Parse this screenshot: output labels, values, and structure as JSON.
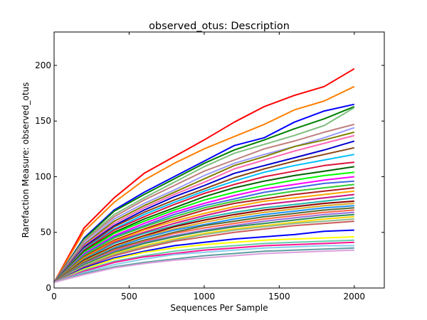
{
  "chart_data": {
    "type": "line",
    "title": "observed_otus: Description",
    "xlabel": "Sequences Per Sample",
    "ylabel": "Rarefaction Measure: observed_otus",
    "xlim": [
      0,
      2200
    ],
    "ylim": [
      0,
      230
    ],
    "x_ticks": [
      0,
      500,
      1000,
      1500,
      2000
    ],
    "y_ticks": [
      0,
      50,
      100,
      150,
      200
    ],
    "grid": false,
    "legend": "none",
    "x": [
      0,
      200,
      400,
      600,
      800,
      1000,
      1200,
      1400,
      1600,
      1800,
      2000
    ],
    "series": [
      {
        "color": "#ff0000",
        "values": [
          5,
          54,
          81,
          103,
          118,
          133,
          149,
          163,
          173,
          181,
          197
        ]
      },
      {
        "color": "#ff7f00",
        "values": [
          5,
          51,
          77,
          97,
          112,
          125,
          136,
          147,
          160,
          168,
          181
        ]
      },
      {
        "color": "#0000ff",
        "values": [
          5,
          45,
          70,
          86,
          100,
          114,
          128,
          135,
          149,
          159,
          165
        ]
      },
      {
        "color": "#008000",
        "values": [
          5,
          44,
          69,
          84,
          98,
          112,
          124,
          133,
          143,
          152,
          163
        ]
      },
      {
        "color": "#7fbf7f",
        "values": [
          5,
          43,
          66,
          81,
          95,
          109,
          121,
          129,
          137,
          146,
          162
        ]
      },
      {
        "color": "#bf7f7f",
        "values": [
          5,
          42,
          64,
          79,
          92,
          105,
          115,
          125,
          132,
          140,
          147
        ]
      },
      {
        "color": "#9999ff",
        "values": [
          5,
          40,
          62,
          76,
          88,
          101,
          112,
          120,
          127,
          135,
          144
        ]
      },
      {
        "color": "#808000",
        "values": [
          5,
          39,
          60,
          74,
          86,
          98,
          110,
          118,
          127,
          133,
          140
        ]
      },
      {
        "color": "#ff69b4",
        "values": [
          5,
          38,
          58,
          72,
          84,
          95,
          107,
          115,
          123,
          130,
          137
        ]
      },
      {
        "color": "#0000cd",
        "values": [
          5,
          37,
          56,
          70,
          82,
          92,
          103,
          110,
          117,
          124,
          132
        ]
      },
      {
        "color": "#8b4513",
        "values": [
          5,
          36,
          55,
          68,
          79,
          89,
          99,
          107,
          114,
          120,
          126
        ]
      },
      {
        "color": "#00bfff",
        "values": [
          5,
          35,
          53,
          66,
          77,
          87,
          96,
          104,
          110,
          115,
          120
        ]
      },
      {
        "color": "#dc143c",
        "values": [
          5,
          34,
          52,
          64,
          75,
          85,
          93,
          100,
          105,
          110,
          113
        ]
      },
      {
        "color": "#006400",
        "values": [
          5,
          33,
          50,
          62,
          72,
          82,
          90,
          96,
          101,
          105,
          109
        ]
      },
      {
        "color": "#00ff00",
        "values": [
          5,
          32,
          49,
          60,
          70,
          79,
          86,
          92,
          97,
          101,
          104
        ]
      },
      {
        "color": "#ff00ff",
        "values": [
          5,
          31,
          47,
          58,
          68,
          76,
          83,
          89,
          93,
          97,
          100
        ]
      },
      {
        "color": "#4169e1",
        "values": [
          5,
          30,
          46,
          56,
          66,
          74,
          80,
          86,
          90,
          94,
          96
        ]
      },
      {
        "color": "#32cd32",
        "values": [
          5,
          29,
          45,
          55,
          64,
          72,
          78,
          83,
          87,
          90,
          93
        ]
      },
      {
        "color": "#b22222",
        "values": [
          5,
          28,
          43,
          53,
          62,
          70,
          76,
          80,
          84,
          87,
          90
        ]
      },
      {
        "color": "#ffa500",
        "values": [
          5,
          27,
          42,
          52,
          60,
          67,
          73,
          78,
          81,
          84,
          87
        ]
      },
      {
        "color": "#c71585",
        "values": [
          5,
          26,
          41,
          50,
          58,
          65,
          71,
          75,
          78,
          81,
          84
        ]
      },
      {
        "color": "#20b2aa",
        "values": [
          5,
          26,
          40,
          49,
          56,
          63,
          68,
          72,
          75,
          78,
          81
        ]
      },
      {
        "color": "#8b0000",
        "values": [
          5,
          25,
          38,
          47,
          55,
          61,
          66,
          70,
          73,
          76,
          78
        ]
      },
      {
        "color": "#daa520",
        "values": [
          5,
          24,
          37,
          46,
          53,
          59,
          64,
          68,
          71,
          74,
          76
        ]
      },
      {
        "color": "#1e90ff",
        "values": [
          5,
          23,
          36,
          45,
          52,
          57,
          62,
          66,
          69,
          72,
          74
        ]
      },
      {
        "color": "#556b2f",
        "values": [
          5,
          23,
          35,
          43,
          50,
          56,
          60,
          64,
          67,
          70,
          72
        ]
      },
      {
        "color": "#ff6347",
        "values": [
          5,
          22,
          34,
          42,
          49,
          54,
          58,
          62,
          65,
          68,
          70
        ]
      },
      {
        "color": "#9370db",
        "values": [
          5,
          22,
          33,
          41,
          47,
          52,
          56,
          60,
          63,
          66,
          68
        ]
      },
      {
        "color": "#2e8b57",
        "values": [
          5,
          21,
          32,
          40,
          46,
          51,
          55,
          58,
          61,
          64,
          66
        ]
      },
      {
        "color": "#ffd700",
        "values": [
          5,
          20,
          31,
          38,
          44,
          49,
          53,
          56,
          59,
          62,
          64
        ]
      },
      {
        "color": "#8fbc8f",
        "values": [
          5,
          20,
          30,
          37,
          43,
          48,
          52,
          55,
          58,
          60,
          62
        ]
      },
      {
        "color": "#cd5c5c",
        "values": [
          5,
          19,
          29,
          36,
          42,
          46,
          50,
          53,
          56,
          58,
          60
        ]
      },
      {
        "color": "#0000ff",
        "values": [
          5,
          18,
          27,
          33,
          38,
          41,
          44,
          46,
          48,
          51,
          52
        ]
      },
      {
        "color": "#ffff00",
        "values": [
          5,
          17,
          26,
          32,
          36,
          39,
          41,
          43,
          44,
          45,
          46
        ]
      },
      {
        "color": "#66cdaa",
        "values": [
          5,
          16,
          24,
          29,
          33,
          36,
          38,
          40,
          41,
          42,
          43
        ]
      },
      {
        "color": "#ff1493",
        "values": [
          5,
          15,
          23,
          28,
          31,
          34,
          36,
          38,
          39,
          40,
          41
        ]
      },
      {
        "color": "#87ceeb",
        "values": [
          5,
          14,
          21,
          26,
          30,
          32,
          34,
          36,
          37,
          38,
          38
        ]
      },
      {
        "color": "#5f9ea0",
        "values": [
          5,
          13,
          19,
          23,
          26,
          29,
          31,
          33,
          34,
          35,
          36
        ]
      },
      {
        "color": "#dda0dd",
        "values": [
          5,
          12,
          18,
          22,
          25,
          27,
          29,
          31,
          32,
          33,
          34
        ]
      }
    ]
  }
}
